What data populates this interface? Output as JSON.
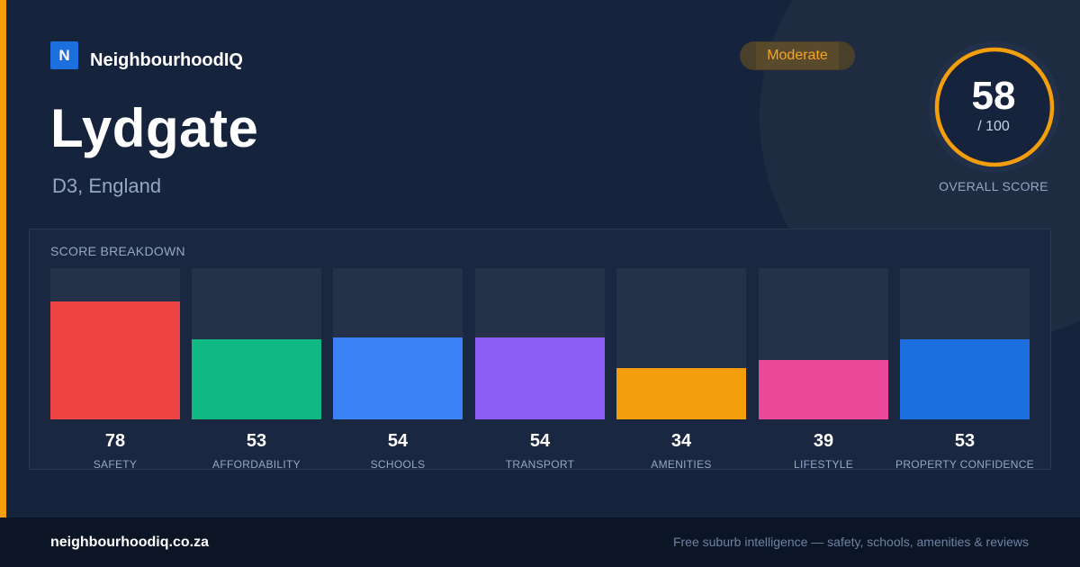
{
  "brand": {
    "logo_letter": "N",
    "name": "NeighbourhoodIQ",
    "accent_color": "#f59e0b",
    "logo_color": "#1d6fe0"
  },
  "badge": {
    "label": "Moderate"
  },
  "suburb": {
    "name": "Lydgate",
    "location": "D3, England"
  },
  "overall": {
    "score": "58",
    "out_of": "/ 100",
    "label": "OVERALL SCORE",
    "score_value": 58,
    "max": 100,
    "ring_color": "#f59e0b"
  },
  "breakdown": {
    "title": "SCORE BREAKDOWN",
    "items": [
      {
        "label": "SAFETY",
        "value": "78",
        "score": 78,
        "color": "#ef4444"
      },
      {
        "label": "AFFORDABILITY",
        "value": "53",
        "score": 53,
        "color": "#10b981"
      },
      {
        "label": "SCHOOLS",
        "value": "54",
        "score": 54,
        "color": "#3b82f6"
      },
      {
        "label": "TRANSPORT",
        "value": "54",
        "score": 54,
        "color": "#8b5cf6"
      },
      {
        "label": "AMENITIES",
        "value": "34",
        "score": 34,
        "color": "#f59e0b"
      },
      {
        "label": "LIFESTYLE",
        "value": "39",
        "score": 39,
        "color": "#ec4899"
      },
      {
        "label": "PROPERTY CONFIDENCE",
        "value": "53",
        "score": 53,
        "color": "#1d6fe0"
      }
    ]
  },
  "footer": {
    "url": "neighbourhoodiq.co.za",
    "tagline": "Free suburb intelligence — safety, schools, amenities & reviews"
  }
}
